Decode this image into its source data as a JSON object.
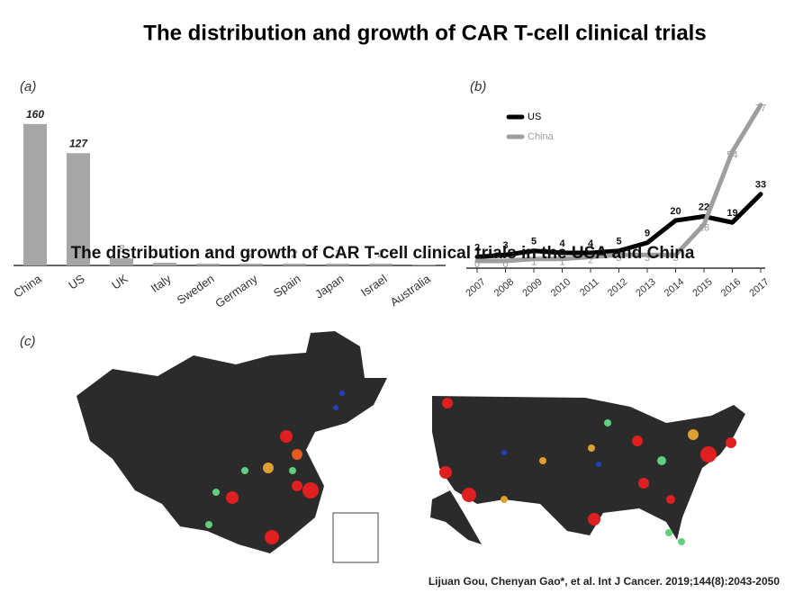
{
  "title": "The distribution and growth of CAR T-cell clinical trials",
  "overlay_title": "The distribution and growth of CAR T-cell clinical trials in the USA and China",
  "panel_c_label": "(c)",
  "citation": "Lijuan Gou, Chenyan Gao*, et al. Int J Cancer. 2019;144(8):2043-2050",
  "chart_data": [
    {
      "type": "bar",
      "label": "(a)",
      "categories": [
        "China",
        "US",
        "UK",
        "Italy",
        "Sweden",
        "Germany",
        "Spain",
        "Japan",
        "Israel",
        "Australia"
      ],
      "values": [
        160,
        127,
        8,
        3,
        2,
        2,
        2,
        2,
        2,
        1
      ],
      "color": "#a6a6a6",
      "ylim": [
        0,
        170
      ]
    },
    {
      "type": "line",
      "label": "(b)",
      "x": [
        2007,
        2008,
        2009,
        2010,
        2011,
        2012,
        2013,
        2014,
        2015,
        2016,
        2017
      ],
      "xlim": [
        2007,
        2017
      ],
      "xticks": [
        2007,
        2008,
        2009,
        2010,
        2011,
        2012,
        2013,
        2014,
        2015,
        2016,
        2017
      ],
      "ylim": [
        0,
        80
      ],
      "legend": "upper left",
      "series": [
        {
          "name": "US",
          "color": "#000000",
          "values": [
            2,
            3,
            5,
            4,
            4,
            5,
            9,
            20,
            22,
            19,
            33
          ]
        },
        {
          "name": "China",
          "color": "#9e9e9e",
          "values": [
            0,
            0,
            1,
            1,
            2,
            3,
            3,
            3,
            18,
            54,
            77
          ]
        }
      ]
    }
  ]
}
